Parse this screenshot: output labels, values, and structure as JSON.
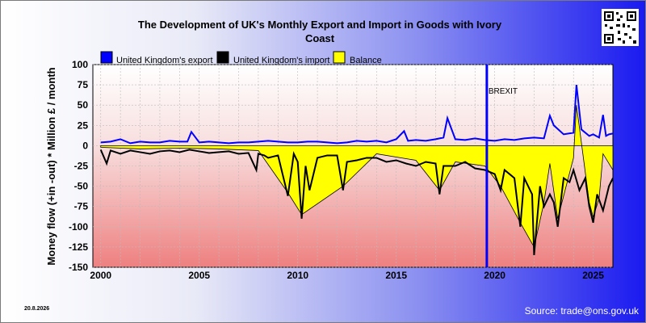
{
  "title": "The Development of UK's Monthly Export and Import in Goods with Ivory Coast",
  "date_stamp": "20.8.2026",
  "source": "Source: trade@ons.gov.uk",
  "colors": {
    "export": "#0000ff",
    "import": "#000000",
    "balance": "#ffff00",
    "brexit": "#0000ff"
  },
  "chart_data": {
    "type": "line",
    "title": "The Development of UK's Monthly Export and Import in Goods with Ivory Coast",
    "xlabel": "",
    "ylabel": "Money flow (+in -out) * Million £ / month",
    "xlim": [
      1999.6,
      2026.0
    ],
    "ylim": [
      -150,
      100
    ],
    "x_ticks": [
      "2000",
      "2005",
      "2010",
      "2015",
      "2020",
      "2025"
    ],
    "y_ticks": [
      "100",
      "75",
      "50",
      "25",
      "0",
      "-25",
      "-50",
      "-75",
      "-100",
      "-125",
      "-150"
    ],
    "grid": true,
    "legend_position": "top",
    "annotations": [
      {
        "text": "BREXIT",
        "x": 2019.6
      }
    ],
    "series": [
      {
        "name": "United Kingdom's export",
        "x": [
          2000,
          2000.5,
          2001,
          2001.5,
          2002,
          2002.5,
          2003,
          2003.5,
          2004,
          2004.4,
          2004.6,
          2005,
          2005.5,
          2006,
          2006.5,
          2007,
          2007.5,
          2008,
          2008.5,
          2009,
          2009.5,
          2010,
          2010.5,
          2011,
          2011.5,
          2012,
          2012.5,
          2013,
          2013.5,
          2014,
          2014.5,
          2015,
          2015.4,
          2015.6,
          2016,
          2016.5,
          2017,
          2017.4,
          2017.6,
          2018,
          2018.5,
          2019,
          2019.5,
          2020,
          2020.5,
          2021,
          2021.5,
          2022,
          2022.5,
          2022.8,
          2023,
          2023.5,
          2024,
          2024.15,
          2024.4,
          2024.8,
          2025,
          2025.3,
          2025.5,
          2025.65,
          2025.8,
          2026
        ],
        "y": [
          4,
          5,
          8,
          3,
          5,
          4,
          4,
          6,
          5,
          5,
          17,
          4,
          5,
          4,
          3,
          4,
          4,
          5,
          6,
          5,
          4,
          4,
          5,
          5,
          4,
          3,
          4,
          6,
          5,
          6,
          4,
          8,
          18,
          6,
          7,
          6,
          8,
          10,
          34,
          8,
          7,
          9,
          7,
          6,
          8,
          7,
          9,
          10,
          9,
          37,
          25,
          14,
          16,
          75,
          20,
          12,
          14,
          10,
          38,
          12,
          14,
          15
        ]
      },
      {
        "name": "United Kingdom's import",
        "x": [
          2000,
          2000.3,
          2000.5,
          2001,
          2001.5,
          2002,
          2002.5,
          2003,
          2003.5,
          2004,
          2004.5,
          2005,
          2005.5,
          2006,
          2006.5,
          2007,
          2007.5,
          2007.9,
          2008,
          2008.3,
          2008.5,
          2009,
          2009.5,
          2009.8,
          2010,
          2010.2,
          2010.4,
          2010.6,
          2011,
          2011.5,
          2012,
          2012.3,
          2012.5,
          2013,
          2013.5,
          2014,
          2014.5,
          2015,
          2015.5,
          2016,
          2016.5,
          2017,
          2017.2,
          2017.4,
          2018,
          2018.5,
          2019,
          2019.5,
          2020,
          2020.3,
          2020.5,
          2021,
          2021.3,
          2021.5,
          2021.9,
          2022,
          2022.3,
          2022.5,
          2022.8,
          2023,
          2023.2,
          2023.5,
          2023.8,
          2024,
          2024.3,
          2024.6,
          2024.8,
          2025,
          2025.2,
          2025.5,
          2025.8,
          2026
        ],
        "y": [
          -5,
          -22,
          -6,
          -10,
          -6,
          -8,
          -10,
          -7,
          -6,
          -8,
          -5,
          -7,
          -9,
          -8,
          -7,
          -10,
          -9,
          -30,
          -10,
          -12,
          -15,
          -12,
          -62,
          -10,
          -20,
          -90,
          -25,
          -55,
          -15,
          -12,
          -12,
          -55,
          -20,
          -18,
          -15,
          -15,
          -20,
          -18,
          -22,
          -25,
          -20,
          -22,
          -60,
          -25,
          -25,
          -20,
          -28,
          -30,
          -35,
          -55,
          -30,
          -40,
          -100,
          -40,
          -60,
          -135,
          -50,
          -75,
          -60,
          -70,
          -100,
          -40,
          -45,
          -30,
          -55,
          -40,
          -75,
          -95,
          -60,
          -80,
          -50,
          -40
        ]
      },
      {
        "name": "Balance",
        "x": [
          2000,
          2002,
          2004,
          2006,
          2008,
          2009.5,
          2010.2,
          2012.3,
          2014,
          2016,
          2017.2,
          2018,
          2019.5,
          2020.3,
          2021.3,
          2022,
          2022.5,
          2022.8,
          2023.2,
          2024,
          2024.15,
          2024.8,
          2025,
          2025.3,
          2025.5,
          2026
        ],
        "y": [
          -2,
          -4,
          -3,
          -4,
          -6,
          -58,
          -85,
          -50,
          -10,
          -18,
          -55,
          -20,
          -25,
          -50,
          -95,
          -125,
          -70,
          -22,
          -90,
          -15,
          50,
          -70,
          -88,
          -65,
          -10,
          -30
        ]
      }
    ]
  }
}
